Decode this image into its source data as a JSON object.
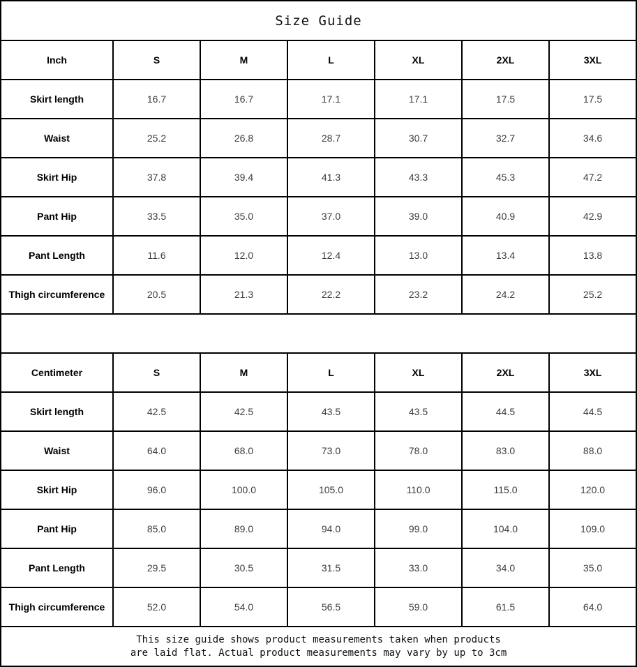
{
  "title": "Size Guide",
  "footer": {
    "line1": "This size guide shows product measurements taken when products",
    "line2": "are laid flat. Actual product measurements may vary by up to 3cm"
  },
  "colors": {
    "border": "#000000",
    "header_text": "#000000",
    "value_text": "#3d3d3d",
    "background": "#ffffff"
  },
  "tables": [
    {
      "unit_label": "Inch",
      "size_headers": [
        "S",
        "M",
        "L",
        "XL",
        "2XL",
        "3XL"
      ],
      "rows": [
        {
          "label": "Skirt length",
          "values": [
            "16.7",
            "16.7",
            "17.1",
            "17.1",
            "17.5",
            "17.5"
          ]
        },
        {
          "label": "Waist",
          "values": [
            "25.2",
            "26.8",
            "28.7",
            "30.7",
            "32.7",
            "34.6"
          ]
        },
        {
          "label": "Skirt Hip",
          "values": [
            "37.8",
            "39.4",
            "41.3",
            "43.3",
            "45.3",
            "47.2"
          ]
        },
        {
          "label": "Pant Hip",
          "values": [
            "33.5",
            "35.0",
            "37.0",
            "39.0",
            "40.9",
            "42.9"
          ]
        },
        {
          "label": "Pant Length",
          "values": [
            "11.6",
            "12.0",
            "12.4",
            "13.0",
            "13.4",
            "13.8"
          ]
        },
        {
          "label": "Thigh circumference",
          "values": [
            "20.5",
            "21.3",
            "22.2",
            "23.2",
            "24.2",
            "25.2"
          ]
        }
      ]
    },
    {
      "unit_label": "Centimeter",
      "size_headers": [
        "S",
        "M",
        "L",
        "XL",
        "2XL",
        "3XL"
      ],
      "rows": [
        {
          "label": "Skirt length",
          "values": [
            "42.5",
            "42.5",
            "43.5",
            "43.5",
            "44.5",
            "44.5"
          ]
        },
        {
          "label": "Waist",
          "values": [
            "64.0",
            "68.0",
            "73.0",
            "78.0",
            "83.0",
            "88.0"
          ]
        },
        {
          "label": "Skirt Hip",
          "values": [
            "96.0",
            "100.0",
            "105.0",
            "110.0",
            "115.0",
            "120.0"
          ]
        },
        {
          "label": "Pant Hip",
          "values": [
            "85.0",
            "89.0",
            "94.0",
            "99.0",
            "104.0",
            "109.0"
          ]
        },
        {
          "label": "Pant Length",
          "values": [
            "29.5",
            "30.5",
            "31.5",
            "33.0",
            "34.0",
            "35.0"
          ]
        },
        {
          "label": "Thigh circumference",
          "values": [
            "52.0",
            "54.0",
            "56.5",
            "59.0",
            "61.5",
            "64.0"
          ]
        }
      ]
    }
  ]
}
